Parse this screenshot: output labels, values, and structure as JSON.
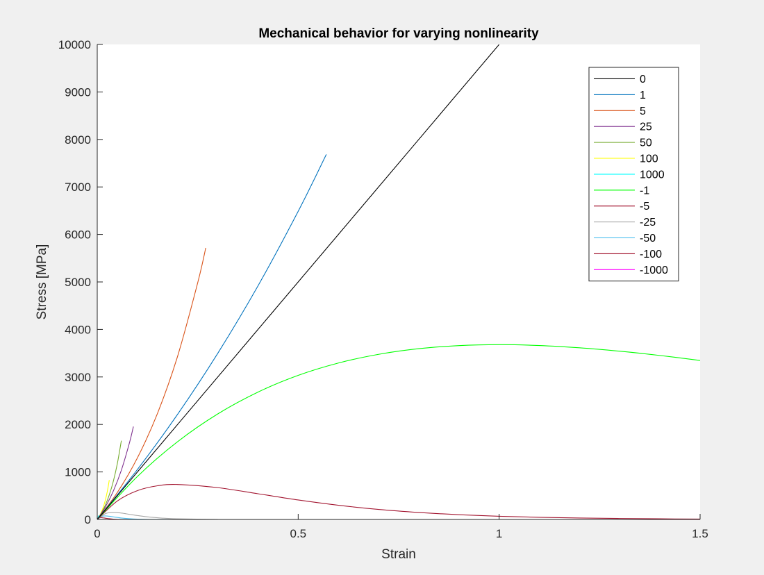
{
  "chart_data": {
    "type": "line",
    "title": "Mechanical behavior for varying nonlinearity",
    "xlabel": "Strain",
    "ylabel": "Stress [MPa]",
    "xlim": [
      0,
      1.5
    ],
    "ylim": [
      0,
      10000
    ],
    "xticks": [
      0,
      0.5,
      1,
      1.5
    ],
    "xtick_labels": [
      "0",
      "0.5",
      "1",
      "1.5"
    ],
    "yticks": [
      0,
      1000,
      2000,
      3000,
      4000,
      5000,
      6000,
      7000,
      8000,
      9000,
      10000
    ],
    "ytick_labels": [
      "0",
      "1000",
      "2000",
      "3000",
      "4000",
      "5000",
      "6000",
      "7000",
      "8000",
      "9000",
      "10000"
    ],
    "grid": false,
    "legend_position": "top-right",
    "series": [
      {
        "name": "0",
        "color": "#000000",
        "x": [
          0,
          0.2,
          0.4,
          0.6,
          0.8,
          1.0
        ],
        "y": [
          0,
          2000,
          4000,
          6000,
          8000,
          10000
        ]
      },
      {
        "name": "1",
        "color": "#0072bd",
        "x": [
          0,
          0.1,
          0.2,
          0.3,
          0.4,
          0.5,
          0.57
        ],
        "y": [
          0,
          1052,
          2214,
          3499,
          4918,
          6487,
          7684
        ]
      },
      {
        "name": "5",
        "color": "#d95319",
        "x": [
          0,
          0.05,
          0.1,
          0.15,
          0.2,
          0.25,
          0.27
        ],
        "y": [
          0,
          568,
          1297,
          2234,
          3437,
          4983,
          5716
        ]
      },
      {
        "name": "25",
        "color": "#7e2f8e",
        "x": [
          0,
          0.02,
          0.04,
          0.06,
          0.08,
          0.09
        ],
        "y": [
          0,
          259,
          597,
          1036,
          1608,
          1956
        ]
      },
      {
        "name": "50",
        "color": "#77ac30",
        "x": [
          0,
          0.01,
          0.02,
          0.03,
          0.04,
          0.05,
          0.06
        ],
        "y": [
          0,
          130,
          299,
          518,
          803,
          1175,
          1658
        ]
      },
      {
        "name": "100",
        "color": "#ffff00",
        "x": [
          0,
          0.005,
          0.01,
          0.015,
          0.02,
          0.025,
          0.03
        ],
        "y": [
          0,
          65,
          150,
          259,
          402,
          587,
          829
        ]
      },
      {
        "name": "1000",
        "color": "#00ffff",
        "x": [
          0,
          0.0005,
          0.001,
          0.002,
          0.003
        ],
        "y": [
          0,
          6.5,
          15,
          40,
          83
        ]
      },
      {
        "name": "-1",
        "color": "#00ff00",
        "x": [
          0,
          0.1,
          0.2,
          0.3,
          0.4,
          0.5,
          0.6,
          0.7,
          0.8,
          0.9,
          1.0,
          1.1,
          1.2,
          1.3,
          1.4,
          1.5
        ],
        "y": [
          0,
          905,
          1637,
          2222,
          2681,
          3033,
          3293,
          3476,
          3595,
          3659,
          3679,
          3662,
          3614,
          3542,
          3452,
          3347
        ]
      },
      {
        "name": "-5",
        "color": "#a2142f",
        "x": [
          0,
          0.05,
          0.1,
          0.15,
          0.2,
          0.3,
          0.4,
          0.5,
          0.6,
          0.7,
          0.8,
          0.9,
          1.0,
          1.1,
          1.2,
          1.3,
          1.4,
          1.5
        ],
        "y": [
          0,
          389,
          607,
          709,
          736,
          669,
          541,
          410,
          299,
          211,
          147,
          100,
          67,
          45,
          30,
          20,
          13,
          8
        ]
      },
      {
        "name": "-25",
        "color": "#a6a6a6",
        "x": [
          0,
          0.02,
          0.04,
          0.06,
          0.08,
          0.1,
          0.12,
          0.16,
          0.2,
          0.3
        ],
        "y": [
          0,
          121,
          147,
          134,
          108,
          82,
          60,
          29,
          13,
          2
        ]
      },
      {
        "name": "-50",
        "color": "#4dbeee",
        "x": [
          0,
          0.01,
          0.02,
          0.03,
          0.04,
          0.06,
          0.08,
          0.1,
          0.14,
          0.2
        ],
        "y": [
          0,
          61,
          74,
          67,
          54,
          30,
          15,
          7,
          1.3,
          0.1
        ]
      },
      {
        "name": "-100",
        "color": "#a2142f",
        "x": [
          0,
          0.005,
          0.01,
          0.015,
          0.02,
          0.03,
          0.04,
          0.06,
          0.1
        ],
        "y": [
          0,
          30,
          37,
          33,
          27,
          15,
          7,
          1.5,
          0
        ]
      },
      {
        "name": "-1000",
        "color": "#ff00ff",
        "x": [
          0,
          0.0005,
          0.001,
          0.002,
          0.004,
          0.006,
          0.01
        ],
        "y": [
          0,
          3,
          3.7,
          2.7,
          0.7,
          0.1,
          0
        ]
      }
    ]
  }
}
